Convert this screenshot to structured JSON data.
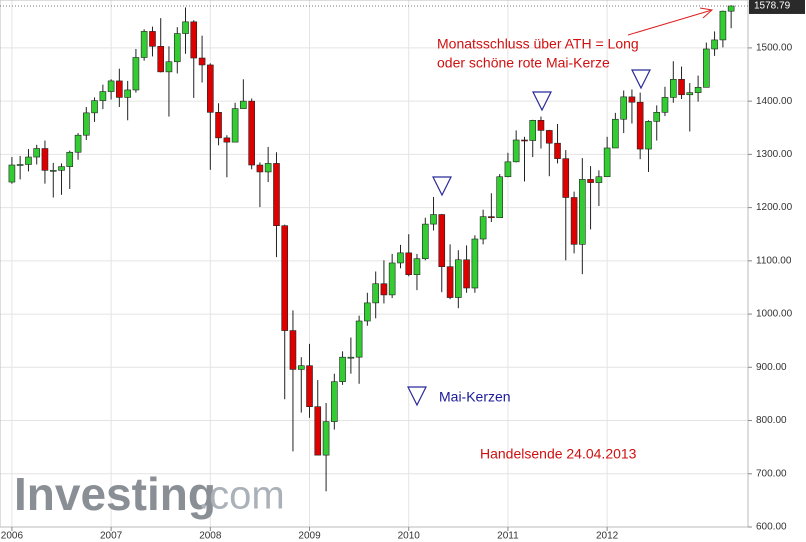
{
  "chart_data": {
    "type": "candlestick",
    "up_color": "#3c3",
    "down_color": "#d00",
    "outline_color": "#222",
    "grid": true,
    "annotations": [
      "Monatsschluss über ATH = Long",
      "oder schöne rote Mai-Kerze",
      "Mai-Kerzen",
      "Handelsende 24.04.2013"
    ],
    "watermark": [
      "Investing",
      ".com"
    ],
    "xlim": [
      2005.88,
      2013.42
    ],
    "xticks": [
      2006,
      2007,
      2008,
      2009,
      2010,
      2011,
      2012
    ],
    "ylim": [
      600,
      1590
    ],
    "yticks": [
      {
        "value": 600,
        "label": "600.00"
      },
      {
        "value": 700,
        "label": "700.00"
      },
      {
        "value": 800,
        "label": "800.00"
      },
      {
        "value": 900,
        "label": "900.00"
      },
      {
        "value": 1000,
        "label": "1000.00"
      },
      {
        "value": 1100,
        "label": "1100.00"
      },
      {
        "value": 1200,
        "label": "1200.00"
      },
      {
        "value": 1300,
        "label": "1300.00"
      },
      {
        "value": 1400,
        "label": "1400.00"
      },
      {
        "value": 1500,
        "label": "1500.00"
      }
    ],
    "x": [
      2006,
      2006.083,
      2006.167,
      2006.25,
      2006.333,
      2006.417,
      2006.5,
      2006.583,
      2006.667,
      2006.75,
      2006.833,
      2006.917,
      2007,
      2007.083,
      2007.167,
      2007.25,
      2007.333,
      2007.417,
      2007.5,
      2007.583,
      2007.667,
      2007.75,
      2007.833,
      2007.917,
      2008,
      2008.083,
      2008.167,
      2008.25,
      2008.333,
      2008.417,
      2008.5,
      2008.583,
      2008.667,
      2008.75,
      2008.833,
      2008.917,
      2009,
      2009.083,
      2009.167,
      2009.25,
      2009.333,
      2009.417,
      2009.5,
      2009.583,
      2009.667,
      2009.75,
      2009.833,
      2009.917,
      2010,
      2010.083,
      2010.167,
      2010.25,
      2010.333,
      2010.417,
      2010.5,
      2010.583,
      2010.667,
      2010.75,
      2010.833,
      2010.917,
      2011,
      2011.083,
      2011.167,
      2011.25,
      2011.333,
      2011.417,
      2011.5,
      2011.583,
      2011.667,
      2011.75,
      2011.833,
      2011.917,
      2012,
      2012.083,
      2012.167,
      2012.25,
      2012.333,
      2012.417,
      2012.5,
      2012.583,
      2012.667,
      2012.75,
      2012.833,
      2012.917,
      2013,
      2013.083,
      2013.167,
      2013.25
    ],
    "open": [
      1248,
      1280,
      1281,
      1295,
      1311,
      1270,
      1270,
      1277,
      1304,
      1336,
      1378,
      1401,
      1418,
      1438,
      1407,
      1421,
      1482,
      1531,
      1503,
      1455,
      1474,
      1527,
      1549,
      1481,
      1468,
      1379,
      1331,
      1323,
      1386,
      1400,
      1280,
      1267,
      1283,
      1166,
      969,
      896,
      903,
      826,
      735,
      798,
      873,
      919,
      919,
      987,
      1021,
      1057,
      1036,
      1096,
      1115,
      1074,
      1104,
      1169,
      1187,
      1089,
      1031,
      1102,
      1049,
      1141,
      1183,
      1181,
      1258,
      1286,
      1327,
      1326,
      1364,
      1345,
      1321,
      1292,
      1219,
      1131,
      1253,
      1247,
      1258,
      1312,
      1366,
      1408,
      1398,
      1310,
      1362,
      1379,
      1407,
      1441,
      1412,
      1416,
      1426,
      1498,
      1515,
      1569
    ],
    "high": [
      1295,
      1297,
      1310,
      1318,
      1326,
      1284,
      1283,
      1307,
      1340,
      1389,
      1407,
      1431,
      1441,
      1461,
      1438,
      1498,
      1535,
      1540,
      1556,
      1503,
      1539,
      1576,
      1552,
      1523,
      1471,
      1396,
      1336,
      1397,
      1441,
      1405,
      1285,
      1314,
      1304,
      1168,
      1007,
      919,
      944,
      876,
      833,
      888,
      930,
      956,
      997,
      1040,
      1080,
      1101,
      1113,
      1130,
      1150,
      1113,
      1181,
      1220,
      1188,
      1131,
      1120,
      1129,
      1148,
      1196,
      1227,
      1263,
      1303,
      1345,
      1333,
      1365,
      1371,
      1346,
      1357,
      1308,
      1230,
      1293,
      1278,
      1270,
      1333,
      1378,
      1420,
      1422,
      1416,
      1364,
      1392,
      1427,
      1475,
      1465,
      1434,
      1448,
      1510,
      1531,
      1570,
      1580
    ],
    "low": [
      1245,
      1253,
      1268,
      1281,
      1245,
      1219,
      1224,
      1235,
      1290,
      1327,
      1361,
      1385,
      1403,
      1389,
      1364,
      1416,
      1476,
      1484,
      1454,
      1371,
      1452,
      1489,
      1406,
      1435,
      1271,
      1317,
      1257,
      1323,
      1386,
      1272,
      1201,
      1248,
      1107,
      840,
      742,
      815,
      805,
      735,
      667,
      783,
      867,
      888,
      869,
      978,
      992,
      1020,
      1030,
      1086,
      1071,
      1045,
      1101,
      1157,
      1041,
      1028,
      1011,
      1040,
      1040,
      1131,
      1173,
      1181,
      1257,
      1285,
      1249,
      1295,
      1311,
      1259,
      1283,
      1101,
      1114,
      1075,
      1159,
      1203,
      1258,
      1312,
      1340,
      1358,
      1291,
      1267,
      1326,
      1372,
      1397,
      1404,
      1343,
      1399,
      1426,
      1485,
      1501,
      1537
    ],
    "close": [
      1280,
      1281,
      1295,
      1311,
      1270,
      1270,
      1277,
      1304,
      1336,
      1378,
      1401,
      1418,
      1438,
      1407,
      1421,
      1482,
      1531,
      1503,
      1455,
      1474,
      1527,
      1549,
      1481,
      1468,
      1379,
      1331,
      1323,
      1386,
      1400,
      1280,
      1267,
      1283,
      1166,
      969,
      896,
      903,
      826,
      735,
      798,
      873,
      919,
      919,
      987,
      1021,
      1057,
      1036,
      1096,
      1115,
      1074,
      1104,
      1169,
      1187,
      1089,
      1031,
      1102,
      1049,
      1141,
      1183,
      1181,
      1258,
      1286,
      1327,
      1326,
      1364,
      1345,
      1321,
      1292,
      1219,
      1131,
      1253,
      1247,
      1258,
      1312,
      1366,
      1408,
      1398,
      1310,
      1362,
      1379,
      1407,
      1441,
      1412,
      1416,
      1426,
      1498,
      1515,
      1569,
      1578.79
    ]
  }
}
